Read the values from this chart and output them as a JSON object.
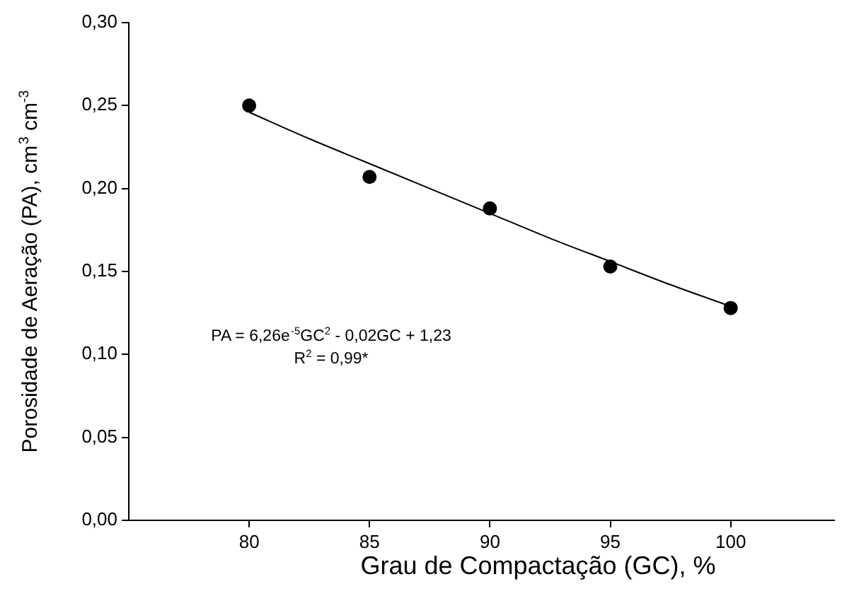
{
  "chart_data": {
    "type": "scatter",
    "xlabel": "Grau de Compactação (GC), %",
    "ylabel": "Porosidade de Aeração (PA), cm$^{3}$ cm$^{-3}$",
    "x": [
      80,
      85,
      90,
      95,
      100
    ],
    "series": [
      {
        "color": "#000000",
        "marker": "circle",
        "values": [
          0.25,
          0.207,
          0.188,
          0.153,
          0.128
        ]
      },
      {
        "type": "line",
        "color": "#000000",
        "marker": "none",
        "line_style": "solid",
        "x": [
          80,
          82.5,
          85,
          87.5,
          90,
          92.5,
          95,
          97.5,
          100
        ],
        "values": [
          0.246,
          0.23,
          0.215,
          0.2,
          0.185,
          0.17,
          0.156,
          0.142,
          0.129
        ]
      }
    ],
    "xlim": [
      75,
      104.3
    ],
    "xticks": [
      80,
      85,
      90,
      95,
      100
    ],
    "ylim": [
      0,
      0.3
    ],
    "yticks": [
      {
        "value": 0,
        "label": "0,00"
      },
      {
        "value": 0.05,
        "label": "0,05"
      },
      {
        "value": 0.1,
        "label": "0,10"
      },
      {
        "value": 0.15,
        "label": "0,15"
      },
      {
        "value": 0.2,
        "label": "0,20"
      },
      {
        "value": 0.25,
        "label": "0,25"
      },
      {
        "value": 0.3,
        "label": "0,30"
      }
    ],
    "annotations": [
      "PA = 6,26e$^{-5}$GC$^{2}$ - 0,02GC + 1,23",
      "R$^{2}$ = 0,99*"
    ],
    "grid": false,
    "legend": false
  }
}
